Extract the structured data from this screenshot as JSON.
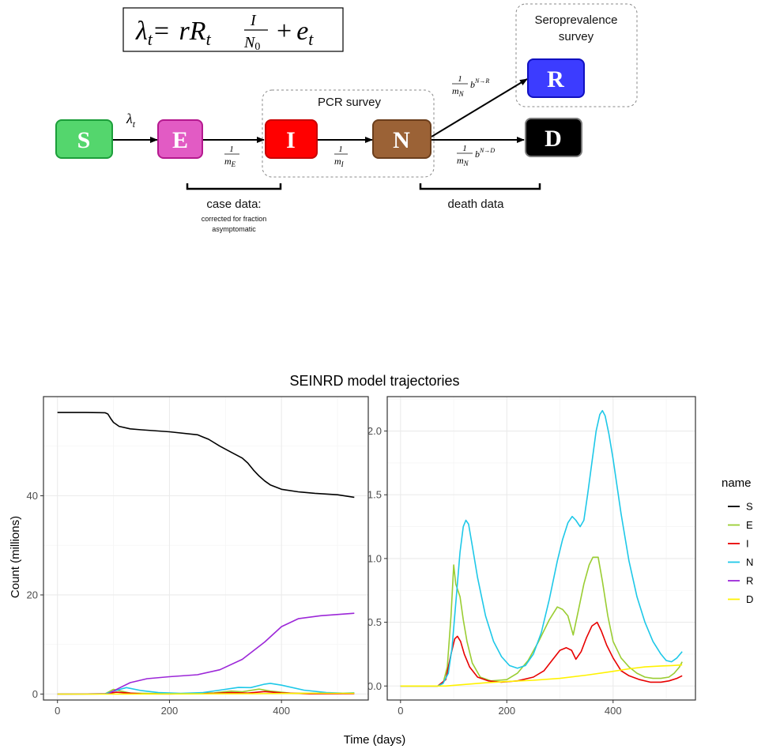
{
  "diagram": {
    "formula": {
      "lhs": "λ",
      "lhs_sub": "t",
      "eq": "=",
      "r": "r",
      "R": "R",
      "R_sub": "t",
      "frac_num": "I",
      "frac_den": "N",
      "frac_den_sub": "0",
      "plus": "+",
      "e": "e",
      "e_sub": "t"
    },
    "nodes": [
      {
        "letter": "S",
        "fill": "#54D66D",
        "stroke": "#1C9E3A"
      },
      {
        "letter": "E",
        "fill": "#E25BC4",
        "stroke": "#B5198F"
      },
      {
        "letter": "I",
        "fill": "#FF0000",
        "stroke": "#C80000"
      },
      {
        "letter": "N",
        "fill": "#9B6236",
        "stroke": "#6B3E1C"
      },
      {
        "letter": "R",
        "fill": "#3C3CFF",
        "stroke": "#1010C0"
      },
      {
        "letter": "D",
        "fill": "#000000",
        "stroke": "#7A7A7A"
      }
    ],
    "edge_labels": {
      "lambda": "λ",
      "lambda_sub": "t",
      "one": "1",
      "m": "m",
      "E_sub": "E",
      "I_sub": "I",
      "N_sub": "N",
      "b": "b",
      "sup_NR": "N→R",
      "sup_ND": "N→D"
    },
    "pcr_label": "PCR survey",
    "sero_label_line1": "Seroprevalence",
    "sero_label_line2": "survey",
    "case_label": "case data:",
    "case_sub_line1": "corrected for fraction",
    "case_sub_line2": "asymptomatic",
    "death_label": "death data"
  },
  "chart_title": "SEINRD model trajectories",
  "y_axis_title": "Count (millions)",
  "x_axis_title": "Time (days)",
  "legend_title": "name",
  "chart_data": [
    {
      "type": "line",
      "title": "SEINRD model trajectories",
      "xlabel": "Time (days)",
      "ylabel": "Count (millions)",
      "xlim": [
        -25,
        555
      ],
      "ylim": [
        -1.2,
        60
      ],
      "x_ticks": [
        0,
        200,
        400
      ],
      "y_ticks": [
        0,
        20,
        40
      ],
      "grid": true,
      "legend": "right",
      "series": [
        {
          "name": "S",
          "color": "#000000",
          "x": [
            0,
            50,
            85,
            90,
            95,
            100,
            110,
            130,
            150,
            200,
            250,
            270,
            290,
            310,
            330,
            340,
            350,
            360,
            370,
            380,
            400,
            430,
            460,
            500,
            530
          ],
          "values": [
            56.8,
            56.8,
            56.75,
            56.5,
            55.6,
            54.8,
            54.0,
            53.5,
            53.3,
            52.9,
            52.3,
            51.4,
            50.0,
            48.8,
            47.6,
            46.6,
            45.2,
            44.0,
            43.0,
            42.2,
            41.3,
            40.8,
            40.5,
            40.2,
            39.7
          ]
        },
        {
          "name": "E",
          "color": "#9ACD32",
          "x": [
            0,
            85,
            100,
            110,
            130,
            200,
            280,
            310,
            330,
            360,
            380,
            420,
            530
          ],
          "values": [
            0,
            0.05,
            0.95,
            0.7,
            0.2,
            0.05,
            0.25,
            0.6,
            0.45,
            1.0,
            0.6,
            0.15,
            0.18
          ]
        },
        {
          "name": "I",
          "color": "#E80000",
          "x": [
            0,
            85,
            105,
            115,
            150,
            200,
            280,
            310,
            340,
            370,
            400,
            450,
            530
          ],
          "values": [
            0,
            0.05,
            0.38,
            0.3,
            0.05,
            0.03,
            0.15,
            0.3,
            0.2,
            0.5,
            0.25,
            0.05,
            0.08
          ]
        },
        {
          "name": "N",
          "color": "#1EC8E8",
          "x": [
            0,
            85,
            100,
            123,
            150,
            180,
            220,
            260,
            290,
            323,
            345,
            370,
            380,
            400,
            440,
            480,
            510,
            530
          ],
          "values": [
            0,
            0.05,
            0.6,
            1.3,
            0.7,
            0.3,
            0.15,
            0.3,
            0.8,
            1.33,
            1.3,
            2.0,
            2.16,
            1.8,
            0.8,
            0.3,
            0.19,
            0.27
          ]
        },
        {
          "name": "R",
          "color": "#9C27D8",
          "x": [
            0,
            90,
            110,
            130,
            160,
            200,
            250,
            290,
            330,
            370,
            400,
            430,
            470,
            530
          ],
          "values": [
            0,
            0.05,
            1.2,
            2.3,
            3.1,
            3.5,
            3.9,
            4.9,
            7.0,
            10.5,
            13.6,
            15.2,
            15.8,
            16.3
          ]
        },
        {
          "name": "D",
          "color": "#FFF200",
          "x": [
            0,
            85,
            120,
            200,
            300,
            350,
            400,
            450,
            500,
            530
          ],
          "values": [
            0,
            0,
            0.01,
            0.03,
            0.06,
            0.08,
            0.12,
            0.15,
            0.16,
            0.165
          ]
        }
      ]
    },
    {
      "type": "line",
      "xlabel": "Time (days)",
      "xlim": [
        -25,
        555
      ],
      "ylim": [
        -0.11,
        2.27
      ],
      "x_ticks": [
        0,
        200,
        400
      ],
      "y_ticks": [
        0.0,
        0.5,
        1.0,
        1.5,
        2.0
      ],
      "y_tick_labels": [
        "0.0",
        "0.5",
        "1.0",
        "1.5",
        "2.0"
      ],
      "grid": true,
      "series": [
        {
          "name": "S",
          "color": "#000000",
          "x": [],
          "values": []
        },
        {
          "name": "E",
          "color": "#9ACD32",
          "x": [
            0,
            70,
            80,
            88,
            95,
            100,
            104,
            108,
            112,
            118,
            125,
            135,
            150,
            170,
            200,
            220,
            240,
            260,
            280,
            295,
            305,
            315,
            325,
            335,
            345,
            355,
            362,
            372,
            380,
            390,
            400,
            415,
            430,
            445,
            460,
            475,
            490,
            505,
            515,
            525,
            530
          ],
          "values": [
            0,
            0,
            0.02,
            0.15,
            0.55,
            0.95,
            0.8,
            0.75,
            0.7,
            0.52,
            0.35,
            0.18,
            0.07,
            0.04,
            0.05,
            0.1,
            0.2,
            0.35,
            0.52,
            0.62,
            0.6,
            0.55,
            0.4,
            0.6,
            0.8,
            0.95,
            1.01,
            1.01,
            0.82,
            0.55,
            0.35,
            0.22,
            0.15,
            0.1,
            0.07,
            0.06,
            0.06,
            0.07,
            0.1,
            0.15,
            0.19
          ]
        },
        {
          "name": "I",
          "color": "#E80000",
          "x": [
            0,
            70,
            85,
            95,
            102,
            107,
            113,
            120,
            130,
            145,
            165,
            190,
            220,
            250,
            270,
            285,
            300,
            312,
            322,
            330,
            340,
            350,
            360,
            370,
            378,
            388,
            400,
            415,
            430,
            450,
            470,
            490,
            505,
            520,
            530
          ],
          "values": [
            0,
            0,
            0.05,
            0.25,
            0.37,
            0.39,
            0.35,
            0.25,
            0.15,
            0.07,
            0.04,
            0.03,
            0.04,
            0.07,
            0.12,
            0.2,
            0.28,
            0.3,
            0.28,
            0.21,
            0.27,
            0.38,
            0.47,
            0.5,
            0.43,
            0.32,
            0.22,
            0.12,
            0.08,
            0.05,
            0.03,
            0.03,
            0.04,
            0.06,
            0.08
          ]
        },
        {
          "name": "N",
          "color": "#1EC8E8",
          "x": [
            0,
            70,
            80,
            90,
            97,
            105,
            112,
            118,
            123,
            128,
            135,
            145,
            160,
            175,
            190,
            205,
            220,
            235,
            250,
            265,
            280,
            295,
            305,
            315,
            323,
            330,
            338,
            345,
            352,
            360,
            368,
            375,
            380,
            385,
            392,
            400,
            415,
            430,
            445,
            460,
            475,
            490,
            500,
            510,
            520,
            530
          ],
          "values": [
            0,
            0,
            0.02,
            0.1,
            0.3,
            0.7,
            1.05,
            1.25,
            1.3,
            1.27,
            1.1,
            0.85,
            0.55,
            0.35,
            0.23,
            0.16,
            0.14,
            0.16,
            0.25,
            0.42,
            0.68,
            0.98,
            1.15,
            1.28,
            1.33,
            1.3,
            1.25,
            1.3,
            1.5,
            1.75,
            2.0,
            2.13,
            2.16,
            2.12,
            1.98,
            1.78,
            1.35,
            0.98,
            0.7,
            0.5,
            0.35,
            0.25,
            0.2,
            0.19,
            0.22,
            0.27
          ]
        },
        {
          "name": "R",
          "color": "#9C27D8",
          "x": [],
          "values": []
        },
        {
          "name": "D",
          "color": "#FFF200",
          "x": [
            0,
            85,
            100,
            130,
            160,
            200,
            250,
            300,
            350,
            400,
            430,
            460,
            490,
            510,
            530
          ],
          "values": [
            0,
            0,
            0.005,
            0.015,
            0.025,
            0.035,
            0.045,
            0.06,
            0.085,
            0.115,
            0.135,
            0.15,
            0.157,
            0.16,
            0.165
          ]
        }
      ]
    }
  ]
}
